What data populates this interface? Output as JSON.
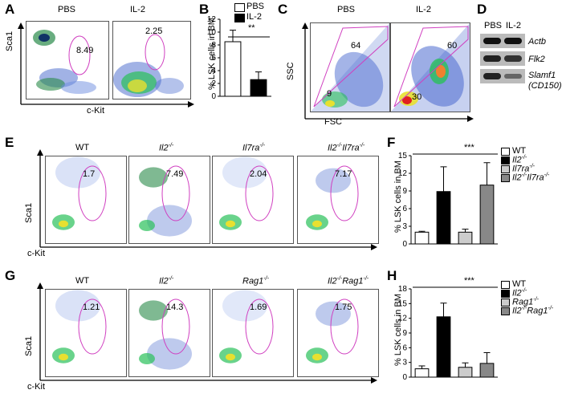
{
  "panels": {
    "A": {
      "label": "A",
      "titles": [
        "PBS",
        "IL-2"
      ],
      "values": [
        "8.49",
        "2.25"
      ],
      "xaxis": "c-Kit",
      "yaxis": "Sca1"
    },
    "B": {
      "label": "B",
      "ylabel": "% LSK cells in BM",
      "legend": [
        "PBS",
        "IL-2"
      ],
      "sig": "**"
    },
    "C": {
      "label": "C",
      "titles": [
        "PBS",
        "IL-2"
      ],
      "values_top": [
        "64",
        "60"
      ],
      "values_bottom": [
        "9",
        "30"
      ],
      "xaxis": "FSC",
      "yaxis": "SSC"
    },
    "D": {
      "label": "D",
      "columns": [
        "PBS",
        "IL-2"
      ],
      "genes": [
        "Actb",
        "Flk2",
        "Slamf1",
        "(CD150)"
      ]
    },
    "E": {
      "label": "E",
      "titles": [
        "WT",
        "Il2-/-",
        "Il7ra-/-",
        "Il2-/-Il7ra-/-"
      ],
      "values": [
        "1.7",
        "7.49",
        "2.04",
        "7.17"
      ],
      "xaxis": "c-Kit",
      "yaxis": "Sca1"
    },
    "F": {
      "label": "F",
      "ylabel": "% LSK cells in BM",
      "legend": [
        "WT",
        "Il2-/-",
        "Il7ra-/-",
        "Il2-/-Il7ra-/-"
      ],
      "sig": "***"
    },
    "G": {
      "label": "G",
      "titles": [
        "WT",
        "Il2-/-",
        "Rag1-/-",
        "Il2-/-Rag1-/-"
      ],
      "values": [
        "1.21",
        "14.3",
        "1.69",
        "1.75"
      ],
      "xaxis": "c-Kit",
      "yaxis": "Sca1"
    },
    "H": {
      "label": "H",
      "ylabel": "% LSK cells in BM",
      "legend": [
        "WT",
        "Il2-/-",
        "Rag1-/-",
        "Il2-/-Rag1-/-"
      ],
      "sig": "***"
    }
  },
  "chart_data": [
    {
      "panel": "B",
      "type": "bar",
      "categories": [
        "PBS",
        "IL-2"
      ],
      "values": [
        8.5,
        2.6
      ],
      "errors": [
        1.8,
        1.2
      ],
      "colors": [
        "#ffffff",
        "#000000"
      ],
      "ylabel": "% LSK cells in BM",
      "ylim": [
        0,
        12
      ],
      "yticks": [
        0,
        2,
        4,
        6,
        8,
        10,
        12
      ]
    },
    {
      "panel": "F",
      "type": "bar",
      "categories": [
        "WT",
        "Il2-/-",
        "Il7ra-/-",
        "Il2-/-Il7ra-/-"
      ],
      "values": [
        2.0,
        8.9,
        2.0,
        10.0
      ],
      "errors": [
        0.15,
        4.2,
        0.5,
        3.8
      ],
      "colors": [
        "#ffffff",
        "#000000",
        "#cccccc",
        "#888888"
      ],
      "ylabel": "% LSK cells in BM",
      "ylim": [
        0,
        15
      ],
      "yticks": [
        0,
        3,
        6,
        9,
        12,
        15
      ]
    },
    {
      "panel": "H",
      "type": "bar",
      "categories": [
        "WT",
        "Il2-/-",
        "Rag1-/-",
        "Il2-/-Rag1-/-"
      ],
      "values": [
        1.7,
        12.3,
        2.0,
        2.8
      ],
      "errors": [
        0.6,
        2.8,
        0.9,
        2.2
      ],
      "colors": [
        "#ffffff",
        "#000000",
        "#cccccc",
        "#888888"
      ],
      "ylabel": "% LSK cells in BM",
      "ylim": [
        0,
        18
      ],
      "yticks": [
        0,
        3,
        6,
        9,
        12,
        15,
        18
      ]
    }
  ]
}
